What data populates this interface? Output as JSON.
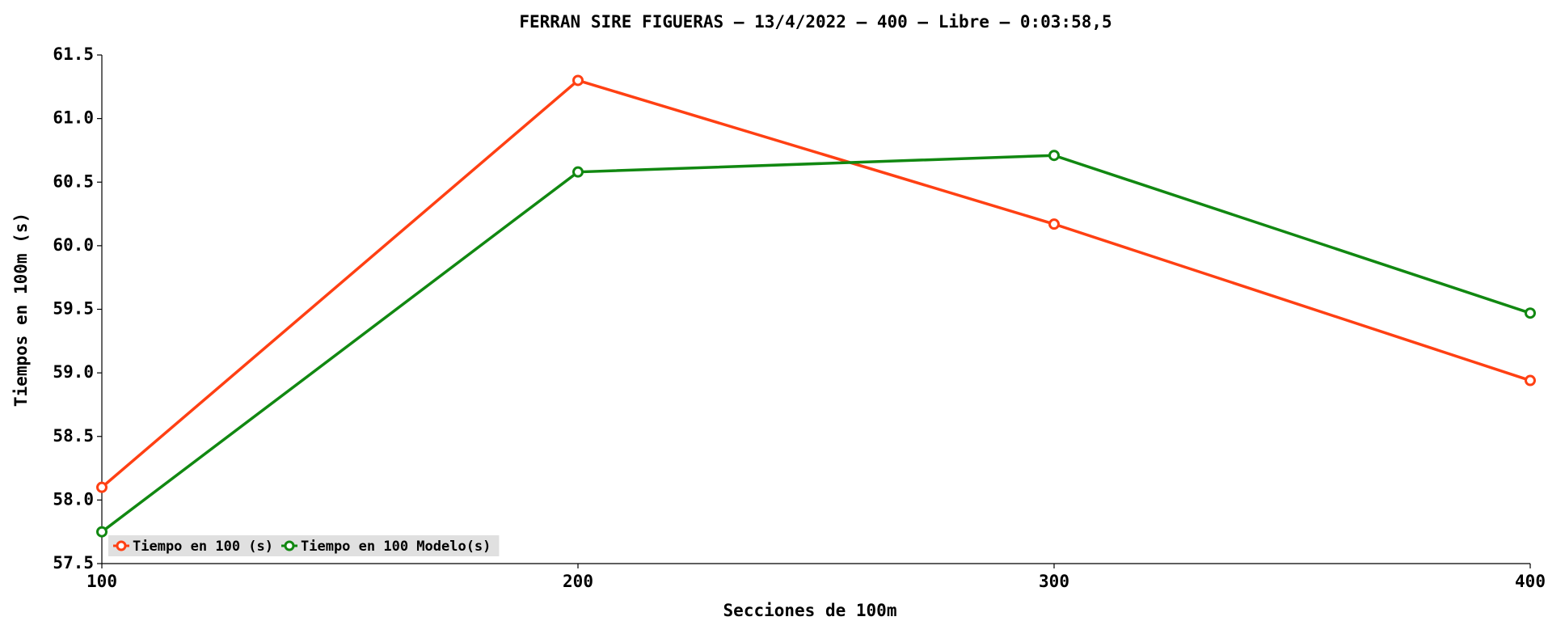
{
  "chart_data": {
    "type": "line",
    "title": "FERRAN SIRE FIGUERAS – 13/4/2022 – 400 – Libre – 0:03:58,5",
    "xlabel": "Secciones de 100m",
    "ylabel": "Tiempos en 100m (s)",
    "x": [
      100,
      200,
      300,
      400
    ],
    "xlim": [
      100,
      400
    ],
    "xticks": [
      100,
      200,
      300,
      400
    ],
    "ylim": [
      57.5,
      61.5
    ],
    "yticks": [
      57.5,
      {
        "value": 58,
        "label": "58.0"
      },
      58.5,
      {
        "value": 59,
        "label": "59.0"
      },
      59.5,
      {
        "value": 60,
        "label": "60.0"
      },
      60.5,
      {
        "value": 61,
        "label": "61.0"
      },
      61.5
    ],
    "legend": "lower left",
    "series": [
      {
        "name": "Tiempo en 100 (s)",
        "color": "#ff4013",
        "values": [
          58.1,
          61.3,
          60.17,
          58.94
        ]
      },
      {
        "name": "Tiempo en 100 Modelo(s)",
        "color": "#118811",
        "values": [
          57.75,
          60.58,
          60.71,
          59.47
        ]
      }
    ]
  }
}
